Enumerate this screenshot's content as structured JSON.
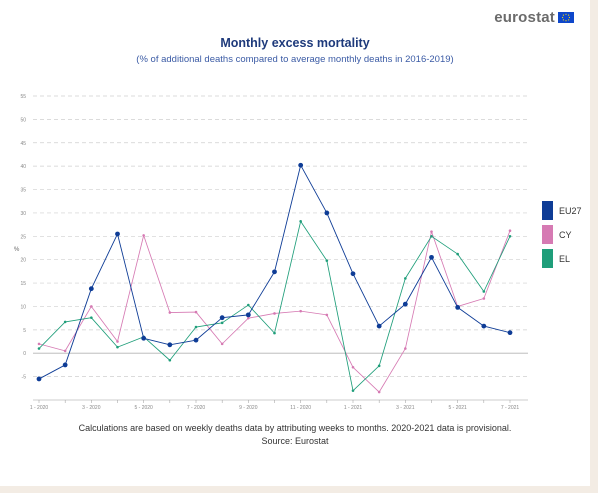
{
  "header": {
    "logo_text": "eurostat"
  },
  "footnote": {
    "line1": "Calculations are based on weekly deaths data by attributing weeks to months. 2020-2021 data is provisional.",
    "line2": "Source: Eurostat"
  },
  "colors": {
    "EU27": "#0e3c96",
    "CY": "#d67ab3",
    "EL": "#1f9e7a",
    "grid": "#cfcfcf",
    "zero_line": "#b5b5b5"
  },
  "chart_data": {
    "type": "line",
    "title": "Monthly excess mortality",
    "subtitle": "(% of additional deaths compared to average monthly deaths in 2016-2019)",
    "xlabel": "",
    "ylabel": "%",
    "ylim": [
      -10,
      55
    ],
    "yticks": [
      -5,
      0,
      5,
      10,
      15,
      20,
      25,
      30,
      35,
      40,
      45,
      50,
      55
    ],
    "x": [
      "1 - 2020",
      "2 - 2020",
      "3 - 2020",
      "4 - 2020",
      "5 - 2020",
      "6 - 2020",
      "7 - 2020",
      "8 - 2020",
      "9 - 2020",
      "10 - 2020",
      "11 - 2020",
      "12 - 2020",
      "1 - 2021",
      "2 - 2021",
      "3 - 2021",
      "4 - 2021",
      "5 - 2021",
      "6 - 2021",
      "7 - 2021"
    ],
    "xtick_labels": [
      "1 - 2020",
      "3 - 2020",
      "5 - 2020",
      "7 - 2020",
      "9 - 2020",
      "11 - 2020",
      "1 - 2021",
      "3 - 2021",
      "5 - 2021",
      "7 - 2021"
    ],
    "grid": true,
    "legend_position": "right",
    "series": [
      {
        "name": "EU27",
        "values": [
          -5.5,
          -2.5,
          13.8,
          25.5,
          3.2,
          1.8,
          2.8,
          7.6,
          8.2,
          17.4,
          40.2,
          30.0,
          17.0,
          5.8,
          10.5,
          20.5,
          9.8,
          5.8,
          4.4
        ]
      },
      {
        "name": "CY",
        "values": [
          2.0,
          0.5,
          10.0,
          2.5,
          25.2,
          8.7,
          8.8,
          2.0,
          7.5,
          8.5,
          9.0,
          8.2,
          -3.0,
          -8.3,
          1.0,
          26.0,
          10.0,
          11.7,
          26.2
        ]
      },
      {
        "name": "EL",
        "values": [
          1.0,
          6.7,
          7.6,
          1.3,
          3.5,
          -1.5,
          5.6,
          6.5,
          10.3,
          4.3,
          28.2,
          19.8,
          -8.0,
          -2.7,
          16.0,
          25.0,
          21.2,
          13.2,
          25.0
        ]
      }
    ]
  }
}
